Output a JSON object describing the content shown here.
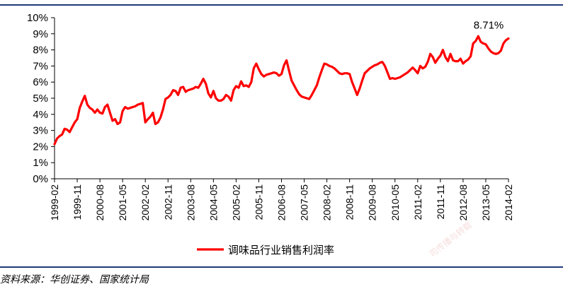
{
  "chart_data": {
    "type": "line",
    "title": "",
    "xlabel": "",
    "ylabel": "",
    "ylim": [
      0,
      10
    ],
    "y_ticks": [
      "0%",
      "1%",
      "2%",
      "3%",
      "4%",
      "5%",
      "6%",
      "7%",
      "8%",
      "9%",
      "10%"
    ],
    "x_ticks": [
      "1999-02",
      "1999-11",
      "2000-08",
      "2001-05",
      "2002-02",
      "2002-11",
      "2003-08",
      "2004-05",
      "2005-02",
      "2005-11",
      "2006-08",
      "2007-05",
      "2008-02",
      "2008-11",
      "2009-08",
      "2010-05",
      "2011-02",
      "2011-11",
      "2012-08",
      "2013-05",
      "2014-02"
    ],
    "grid": false,
    "legend_position": "bottom",
    "line_color": "#ff0000",
    "series": [
      {
        "name": "调味品行业销售利润率",
        "points": [
          [
            "1999-02",
            2.15
          ],
          [
            "1999-03",
            2.5
          ],
          [
            "1999-04",
            2.65
          ],
          [
            "1999-05",
            2.75
          ],
          [
            "1999-06",
            3.1
          ],
          [
            "1999-07",
            3.05
          ],
          [
            "1999-08",
            2.9
          ],
          [
            "1999-09",
            3.2
          ],
          [
            "1999-10",
            3.5
          ],
          [
            "1999-11",
            3.7
          ],
          [
            "1999-12",
            4.4
          ],
          [
            "2000-01",
            4.8
          ],
          [
            "2000-02",
            5.15
          ],
          [
            "2000-03",
            4.6
          ],
          [
            "2000-04",
            4.4
          ],
          [
            "2000-05",
            4.3
          ],
          [
            "2000-06",
            4.1
          ],
          [
            "2000-07",
            4.3
          ],
          [
            "2000-08",
            4.1
          ],
          [
            "2000-09",
            4.05
          ],
          [
            "2000-10",
            4.45
          ],
          [
            "2000-11",
            4.6
          ],
          [
            "2000-12",
            4.1
          ],
          [
            "2001-01",
            3.6
          ],
          [
            "2001-02",
            3.7
          ],
          [
            "2001-03",
            3.4
          ],
          [
            "2001-04",
            3.5
          ],
          [
            "2001-05",
            4.2
          ],
          [
            "2001-06",
            4.45
          ],
          [
            "2001-07",
            4.35
          ],
          [
            "2001-08",
            4.4
          ],
          [
            "2001-09",
            4.45
          ],
          [
            "2001-10",
            4.5
          ],
          [
            "2001-11",
            4.6
          ],
          [
            "2001-12",
            4.65
          ],
          [
            "2002-01",
            4.7
          ],
          [
            "2002-02",
            3.5
          ],
          [
            "2002-03",
            3.7
          ],
          [
            "2002-04",
            3.85
          ],
          [
            "2002-05",
            4.1
          ],
          [
            "2002-06",
            3.4
          ],
          [
            "2002-07",
            3.5
          ],
          [
            "2002-08",
            3.8
          ],
          [
            "2002-09",
            4.3
          ],
          [
            "2002-10",
            4.95
          ],
          [
            "2002-11",
            5.05
          ],
          [
            "2002-12",
            5.2
          ],
          [
            "2003-01",
            5.5
          ],
          [
            "2003-02",
            5.45
          ],
          [
            "2003-03",
            5.2
          ],
          [
            "2003-04",
            5.65
          ],
          [
            "2003-05",
            5.7
          ],
          [
            "2003-06",
            5.4
          ],
          [
            "2003-07",
            5.5
          ],
          [
            "2003-08",
            5.55
          ],
          [
            "2003-09",
            5.6
          ],
          [
            "2003-10",
            5.7
          ],
          [
            "2003-11",
            5.65
          ],
          [
            "2003-12",
            5.9
          ],
          [
            "2004-01",
            6.2
          ],
          [
            "2004-02",
            5.9
          ],
          [
            "2004-03",
            5.3
          ],
          [
            "2004-04",
            5.05
          ],
          [
            "2004-05",
            5.45
          ],
          [
            "2004-06",
            5.0
          ],
          [
            "2004-07",
            4.85
          ],
          [
            "2004-08",
            4.85
          ],
          [
            "2004-09",
            4.95
          ],
          [
            "2004-10",
            5.2
          ],
          [
            "2004-11",
            5.1
          ],
          [
            "2004-12",
            4.85
          ],
          [
            "2005-01",
            5.5
          ],
          [
            "2005-02",
            5.75
          ],
          [
            "2005-03",
            5.65
          ],
          [
            "2005-04",
            6.05
          ],
          [
            "2005-05",
            5.75
          ],
          [
            "2005-06",
            5.8
          ],
          [
            "2005-07",
            5.7
          ],
          [
            "2005-08",
            6.0
          ],
          [
            "2005-09",
            6.85
          ],
          [
            "2005-10",
            7.15
          ],
          [
            "2005-11",
            6.8
          ],
          [
            "2005-12",
            6.5
          ],
          [
            "2006-01",
            6.35
          ],
          [
            "2006-02",
            6.45
          ],
          [
            "2006-03",
            6.5
          ],
          [
            "2006-04",
            6.55
          ],
          [
            "2006-05",
            6.6
          ],
          [
            "2006-06",
            6.55
          ],
          [
            "2006-07",
            6.4
          ],
          [
            "2006-08",
            6.5
          ],
          [
            "2006-09",
            7.05
          ],
          [
            "2006-10",
            7.35
          ],
          [
            "2006-11",
            6.7
          ],
          [
            "2006-12",
            6.1
          ],
          [
            "2007-01",
            5.8
          ],
          [
            "2007-02",
            5.5
          ],
          [
            "2007-03",
            5.25
          ],
          [
            "2007-04",
            5.1
          ],
          [
            "2007-05",
            5.05
          ],
          [
            "2007-06",
            5.0
          ],
          [
            "2007-07",
            4.95
          ],
          [
            "2007-08",
            5.2
          ],
          [
            "2007-09",
            5.5
          ],
          [
            "2007-10",
            5.8
          ],
          [
            "2007-11",
            6.3
          ],
          [
            "2007-12",
            6.75
          ],
          [
            "2008-01",
            7.15
          ],
          [
            "2008-02",
            7.1
          ],
          [
            "2008-03",
            7.0
          ],
          [
            "2008-04",
            6.95
          ],
          [
            "2008-05",
            6.85
          ],
          [
            "2008-06",
            6.7
          ],
          [
            "2008-07",
            6.55
          ],
          [
            "2008-08",
            6.5
          ],
          [
            "2008-09",
            6.55
          ],
          [
            "2008-10",
            6.55
          ],
          [
            "2008-11",
            6.5
          ],
          [
            "2008-12",
            6.0
          ],
          [
            "2009-01",
            5.6
          ],
          [
            "2009-02",
            5.2
          ],
          [
            "2009-03",
            5.6
          ],
          [
            "2009-04",
            6.1
          ],
          [
            "2009-05",
            6.55
          ],
          [
            "2009-06",
            6.7
          ],
          [
            "2009-07",
            6.85
          ],
          [
            "2009-08",
            6.95
          ],
          [
            "2009-09",
            7.05
          ],
          [
            "2009-10",
            7.1
          ],
          [
            "2009-11",
            7.2
          ],
          [
            "2009-12",
            7.25
          ],
          [
            "2010-01",
            7.0
          ],
          [
            "2010-02",
            6.6
          ],
          [
            "2010-03",
            6.2
          ],
          [
            "2010-04",
            6.25
          ],
          [
            "2010-05",
            6.2
          ],
          [
            "2010-06",
            6.25
          ],
          [
            "2010-07",
            6.3
          ],
          [
            "2010-08",
            6.4
          ],
          [
            "2010-09",
            6.5
          ],
          [
            "2010-10",
            6.6
          ],
          [
            "2010-11",
            6.75
          ],
          [
            "2010-12",
            6.9
          ],
          [
            "2011-01",
            6.75
          ],
          [
            "2011-02",
            6.55
          ],
          [
            "2011-03",
            7.0
          ],
          [
            "2011-04",
            6.85
          ],
          [
            "2011-05",
            6.95
          ],
          [
            "2011-06",
            7.25
          ],
          [
            "2011-07",
            7.75
          ],
          [
            "2011-08",
            7.55
          ],
          [
            "2011-09",
            7.2
          ],
          [
            "2011-10",
            7.45
          ],
          [
            "2011-11",
            7.65
          ],
          [
            "2011-12",
            8.0
          ],
          [
            "2012-01",
            7.55
          ],
          [
            "2012-02",
            7.3
          ],
          [
            "2012-03",
            7.75
          ],
          [
            "2012-04",
            7.35
          ],
          [
            "2012-05",
            7.3
          ],
          [
            "2012-06",
            7.3
          ],
          [
            "2012-07",
            7.45
          ],
          [
            "2012-08",
            7.15
          ],
          [
            "2012-09",
            7.3
          ],
          [
            "2012-10",
            7.4
          ],
          [
            "2012-11",
            7.6
          ],
          [
            "2012-12",
            8.4
          ],
          [
            "2013-01",
            8.55
          ],
          [
            "2013-02",
            8.85
          ],
          [
            "2013-03",
            8.5
          ],
          [
            "2013-04",
            8.4
          ],
          [
            "2013-05",
            8.35
          ],
          [
            "2013-06",
            8.1
          ],
          [
            "2013-07",
            7.9
          ],
          [
            "2013-08",
            7.8
          ],
          [
            "2013-09",
            7.75
          ],
          [
            "2013-10",
            7.8
          ],
          [
            "2013-11",
            7.95
          ],
          [
            "2013-12",
            8.4
          ],
          [
            "2014-01",
            8.6
          ],
          [
            "2014-02",
            8.71
          ]
        ]
      }
    ],
    "annotations": [
      {
        "text": "8.71%",
        "x": "2014-02",
        "y": 8.71
      }
    ]
  },
  "source_text": "资料来源：华创证券、国家统计局",
  "watermark_text": "司传播与转载"
}
